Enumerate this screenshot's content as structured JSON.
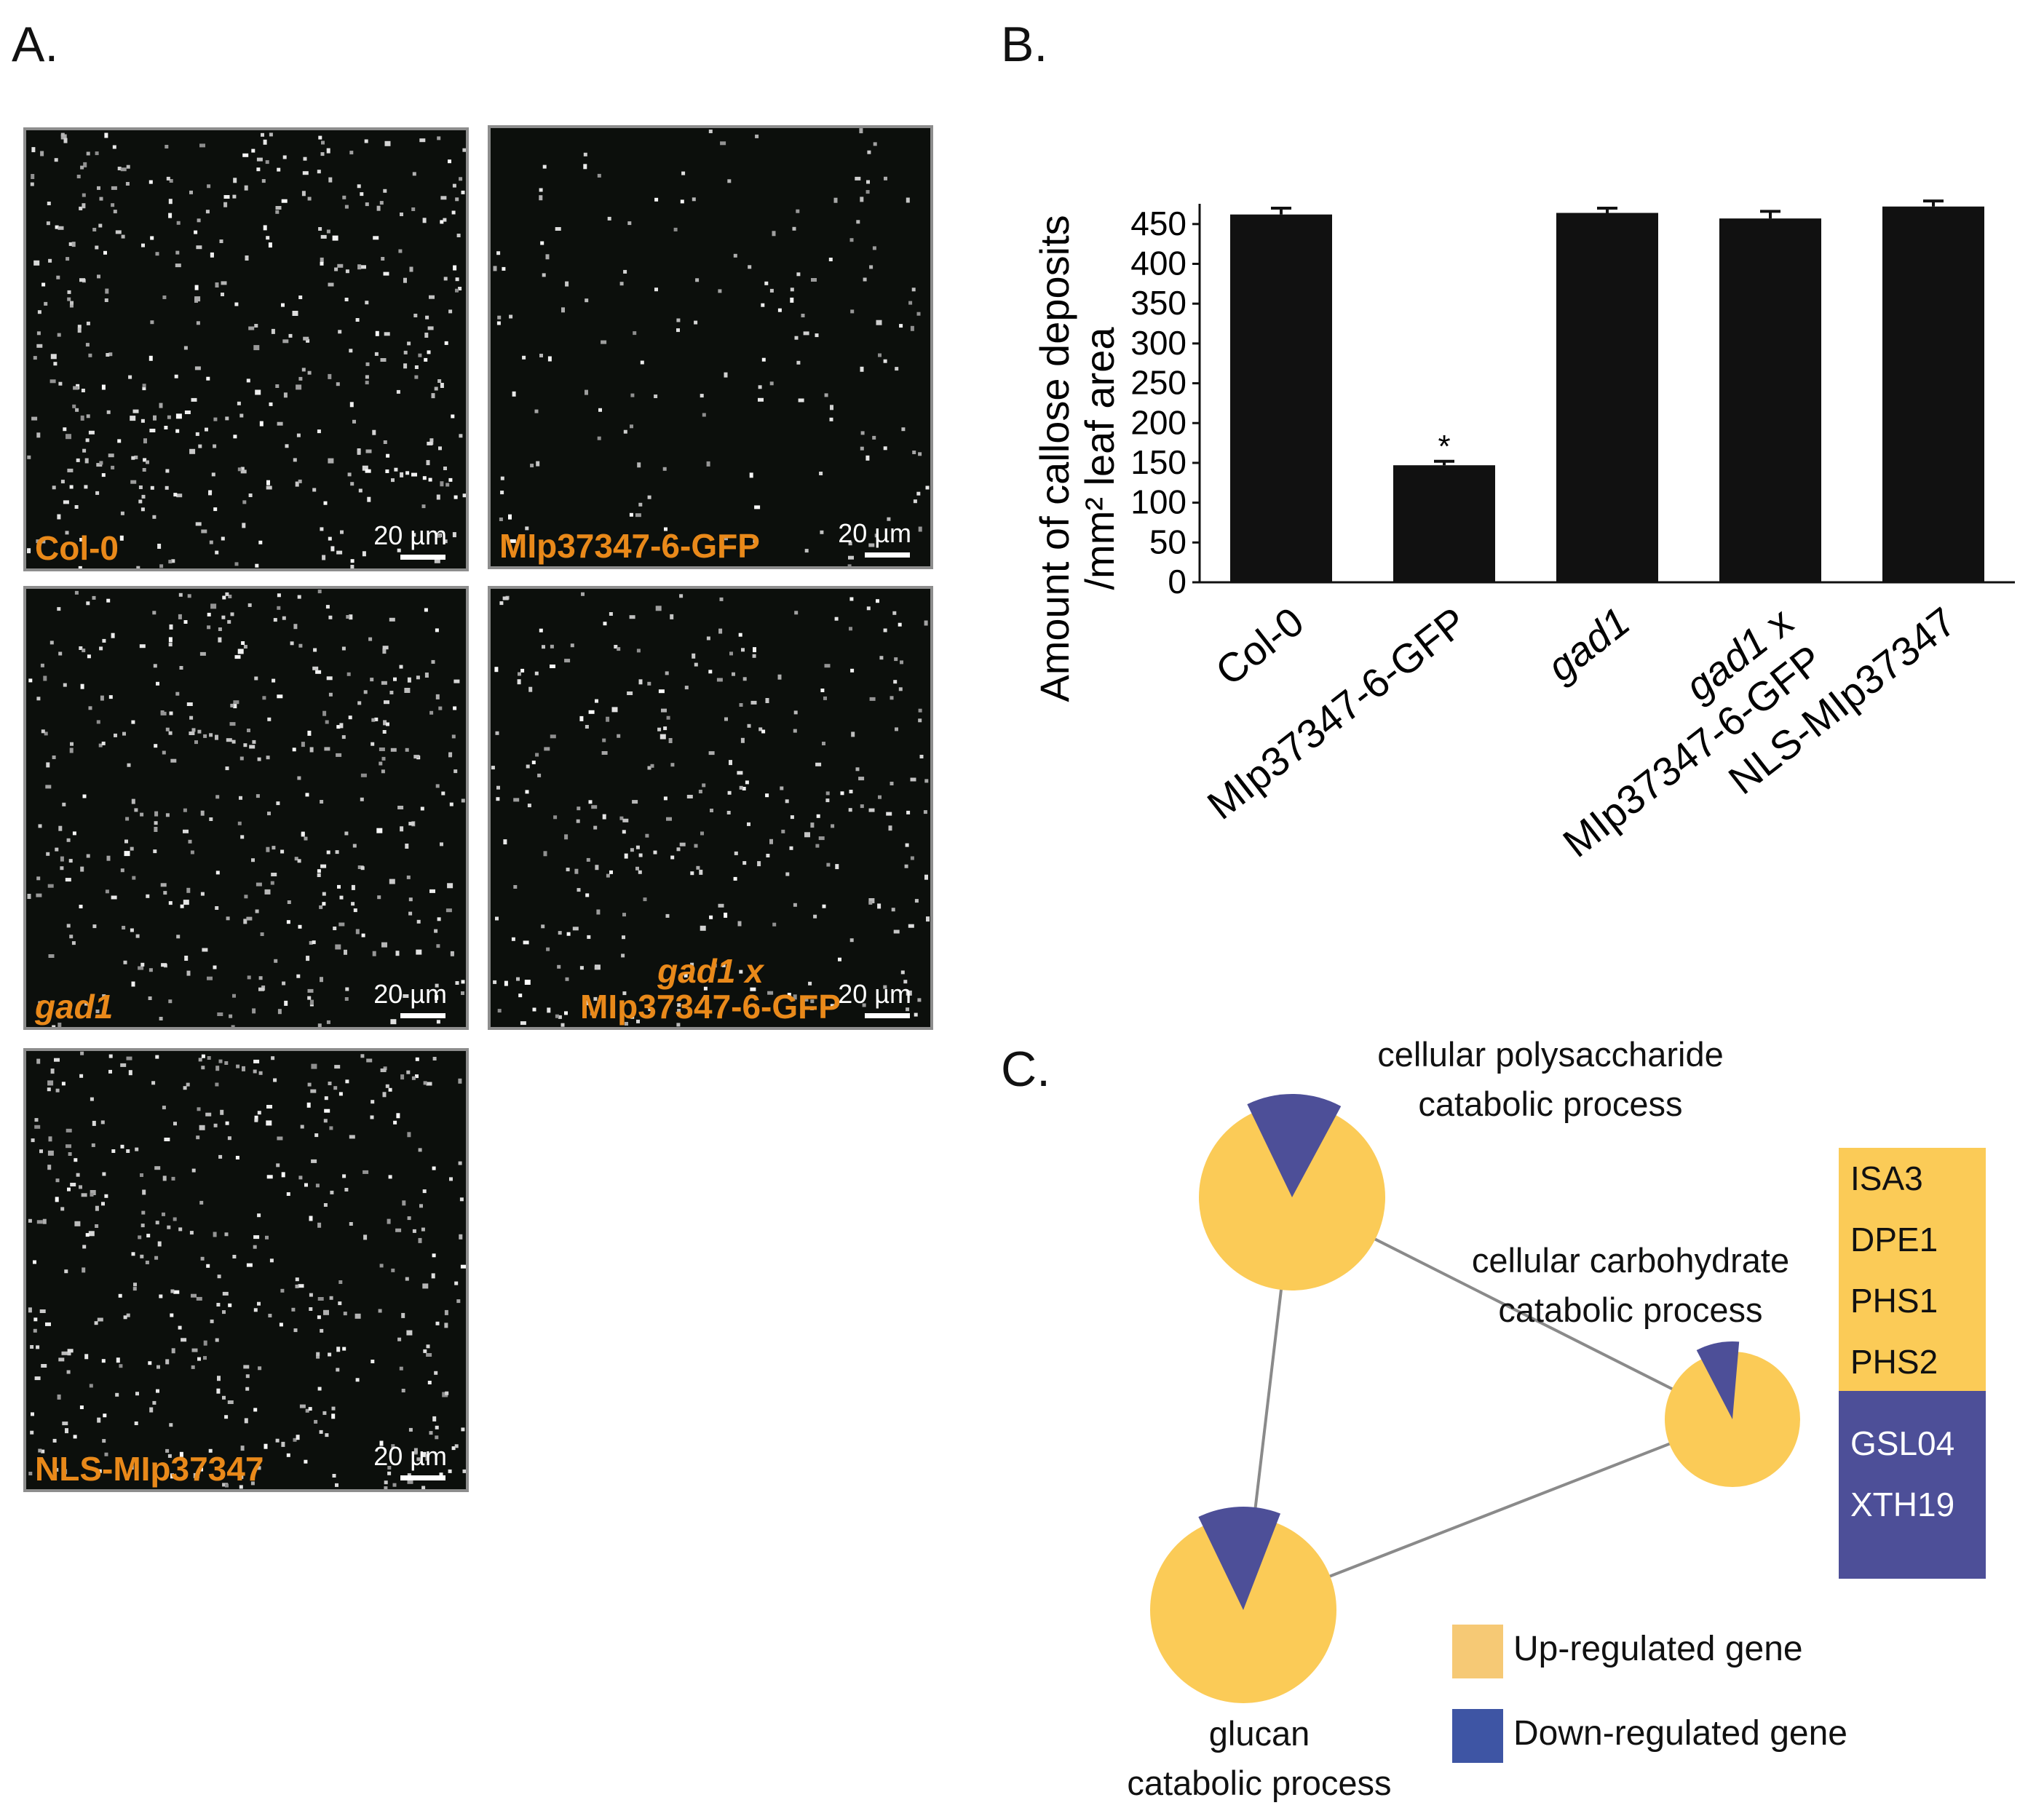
{
  "panel_a": {
    "letter": "A.",
    "scale_label": "20 µm",
    "images": [
      {
        "label_lines": [
          "Col-0"
        ],
        "italic": false
      },
      {
        "label_lines": [
          "MIp37347-6-GFP"
        ],
        "italic": false
      },
      {
        "label_lines": [
          "gad1"
        ],
        "italic": true
      },
      {
        "label_lines": [
          "gad1 x",
          "MIp37347-6-GFP"
        ],
        "italic": false
      },
      {
        "label_lines": [
          "NLS-MIp37347"
        ],
        "italic": false
      }
    ]
  },
  "panel_b": {
    "letter": "B."
  },
  "chart_data": {
    "type": "bar",
    "categories": [
      "Col-0",
      "MIp37347-6-GFP",
      "gad1",
      "gad1 x MIp37347-6-GFP",
      "NLS-MIp37347"
    ],
    "values": [
      462,
      147,
      464,
      457,
      472
    ],
    "errors": [
      8,
      5,
      6,
      9,
      7
    ],
    "significance": [
      "",
      "*",
      "",
      "",
      ""
    ],
    "ylabel_line1": "Amount of callose deposits",
    "ylabel_line2": "/mm² leaf area",
    "ylim": [
      0,
      480
    ],
    "yticks": [
      0,
      50,
      100,
      150,
      200,
      250,
      300,
      350,
      400,
      450
    ],
    "bar_color": "#111111",
    "grid": false
  },
  "panel_c": {
    "letter": "C.",
    "nodes": [
      {
        "label_lines": [
          "cellular polysaccharide",
          "catabolic process"
        ],
        "down_fraction": 0.15
      },
      {
        "label_lines": [
          "cellular carbohydrate",
          "catabolic process"
        ],
        "down_fraction": 0.09
      },
      {
        "label_lines": [
          "glucan",
          "catabolic process"
        ],
        "down_fraction": 0.13
      }
    ],
    "up_genes": [
      "ISA3",
      "DPE1",
      "PHS1",
      "PHS2"
    ],
    "down_genes": [
      "GSL04",
      "XTH19"
    ],
    "legend": {
      "up_label": "Up-regulated gene",
      "down_label": "Down-regulated gene"
    },
    "colors": {
      "up": "#fbcb57",
      "down": "#4d4f98",
      "legend_up": "#f6c975",
      "legend_down": "#3e55a4",
      "edge": "#8a8a8a"
    }
  }
}
